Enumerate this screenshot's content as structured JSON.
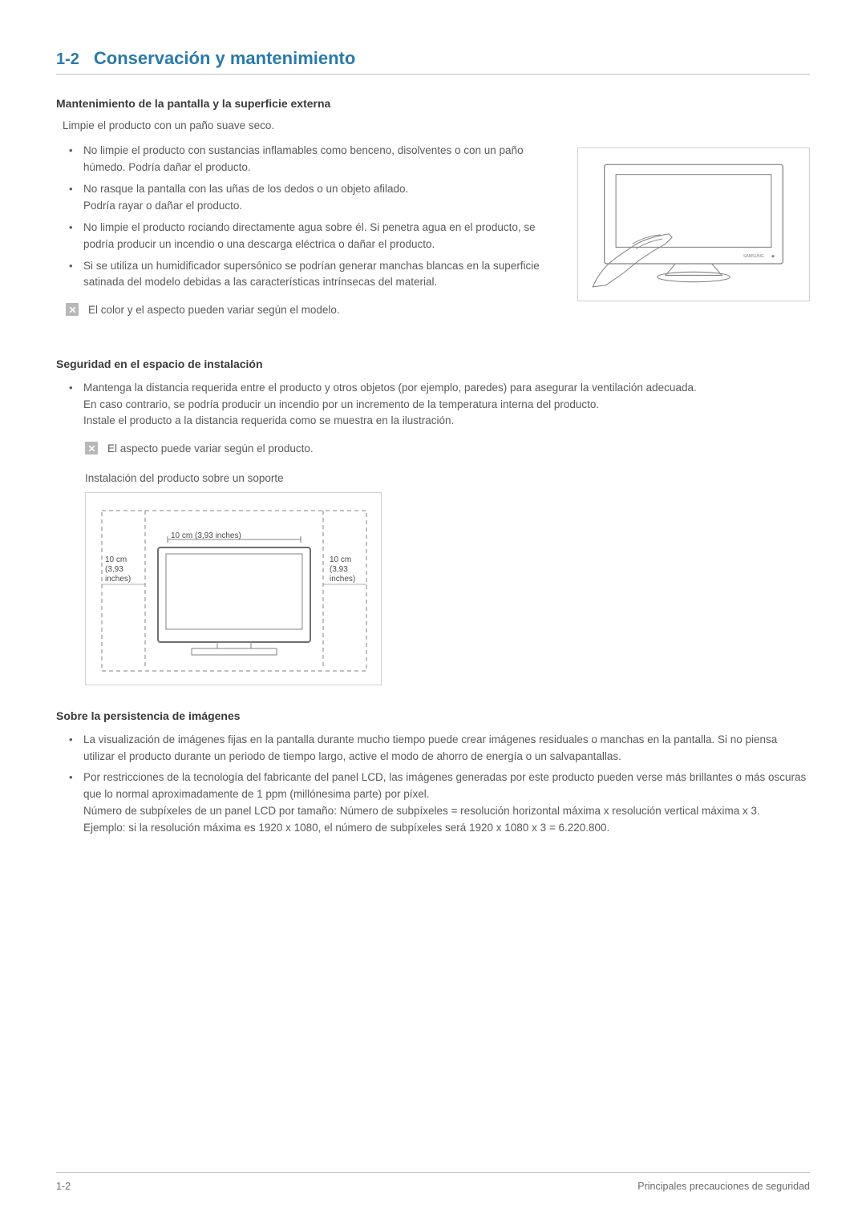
{
  "header": {
    "number": "1-2",
    "title": "Conservación y mantenimiento"
  },
  "maintenance": {
    "heading": "Mantenimiento de la pantalla y la superficie externa",
    "intro": "Limpie el producto con un paño suave seco.",
    "bullets": [
      "No limpie el producto con sustancias inflamables como benceno, disolventes o con un paño húmedo. Podría dañar el producto.",
      "No rasque la pantalla con las uñas de los dedos o un objeto afilado.\nPodría rayar o dañar el producto.",
      "No limpie el producto rociando directamente agua sobre él. Si penetra agua en el producto, se podría producir un incendio o una descarga eléctrica o dañar el producto.",
      "Si se utiliza un humidificador supersónico se podrían generar manchas blancas en la superficie satinada del modelo debidas a las características intrínsecas del material."
    ],
    "note": "El color y el aspecto pueden variar según el modelo."
  },
  "installation": {
    "heading": "Seguridad en el espacio de instalación",
    "bullets": [
      "Mantenga la distancia requerida entre el producto y otros objetos (por ejemplo, paredes) para asegurar la ventilación adecuada.\nEn caso contrario, se podría producir un incendio por un incremento de la temperatura interna del producto.\nInstale el producto a la distancia requerida como se muestra en la ilustración."
    ],
    "note": "El aspecto puede variar según el producto.",
    "caption": "Instalación del producto sobre un soporte",
    "diagram": {
      "label_top": "10 cm (3,93 inches)",
      "label_left_l1": "10 cm",
      "label_left_l2": "(3,93",
      "label_left_l3": "inches)",
      "label_right_l1": "10 cm",
      "label_right_l2": "(3,93",
      "label_right_l3": "inches)"
    }
  },
  "persistence": {
    "heading": "Sobre la persistencia de imágenes",
    "bullets": [
      "La visualización de imágenes fijas en la pantalla durante mucho tiempo puede crear imágenes residuales o manchas en la pantalla. Si no piensa utilizar el producto durante un periodo de tiempo largo, active el modo de ahorro de energía o un salvapantallas.",
      "Por restricciones de la tecnología del fabricante del panel LCD, las imágenes generadas por este producto pueden verse más brillantes o más oscuras que lo normal aproximadamente de 1 ppm (millónesima parte) por píxel.\nNúmero de subpíxeles de un panel LCD por tamaño: Número de subpíxeles = resolución horizontal máxima x resolución vertical máxima x 3.\nEjemplo: si la resolución máxima es 1920 x 1080, el número de subpíxeles será 1920 x 1080 x 3 = 6.220.800."
    ]
  },
  "footer": {
    "left": "1-2",
    "right": "Principales precauciones de seguridad"
  },
  "colors": {
    "accent": "#2a7aa8",
    "text": "#5a5a5a",
    "heading": "#3a3a3a",
    "border": "#c0c0c0",
    "icon_bg": "#b8b8b8"
  }
}
